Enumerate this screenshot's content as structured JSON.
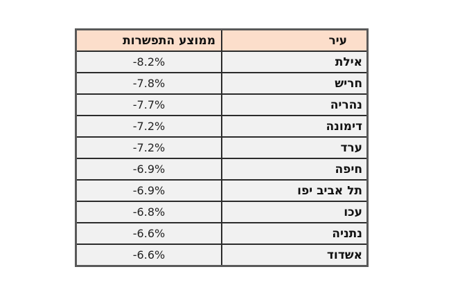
{
  "chart_data": {
    "type": "table",
    "title": "",
    "columns": [
      "עיר",
      "ממוצע התפשרות"
    ],
    "rows": [
      {
        "city": "אילת",
        "avg_pct": -8.2,
        "avg_label": "-8.2%"
      },
      {
        "city": "חריש",
        "avg_pct": -7.8,
        "avg_label": "-7.8%"
      },
      {
        "city": "נהריה",
        "avg_pct": -7.7,
        "avg_label": "-7.7%"
      },
      {
        "city": "דימונה",
        "avg_pct": -7.2,
        "avg_label": "-7.2%"
      },
      {
        "city": "ערד",
        "avg_pct": -7.2,
        "avg_label": "-7.2%"
      },
      {
        "city": "חיפה",
        "avg_pct": -6.9,
        "avg_label": "-6.9%"
      },
      {
        "city": "תל אביב יפו",
        "avg_pct": -6.9,
        "avg_label": "-6.9%"
      },
      {
        "city": "עכו",
        "avg_pct": -6.8,
        "avg_label": "-6.8%"
      },
      {
        "city": "נתניה",
        "avg_pct": -6.6,
        "avg_label": "-6.6%"
      },
      {
        "city": "אשדוד",
        "avg_pct": -6.6,
        "avg_label": "-6.6%"
      }
    ]
  },
  "colors": {
    "header_bg": "#fcdecb",
    "row_bg": "#f1f1f1",
    "inner_border": "#2b2b2b",
    "outer_border": "#595959",
    "page_bg": "#ffffff"
  }
}
